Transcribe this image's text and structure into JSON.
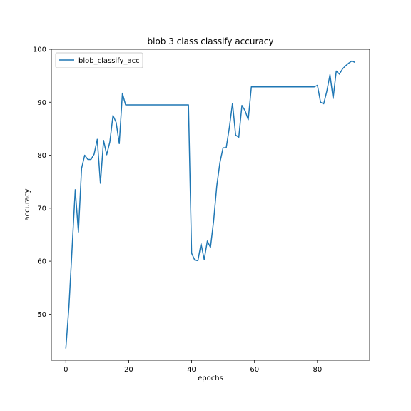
{
  "chart_data": {
    "type": "line",
    "title": "blob 3 class classify accuracy",
    "xlabel": "epochs",
    "ylabel": "accuracy",
    "xlim": [
      -4.6,
      96.6
    ],
    "ylim": [
      41.3,
      100.0
    ],
    "xticks": [
      0,
      20,
      40,
      60,
      80
    ],
    "yticks": [
      50,
      60,
      70,
      80,
      90,
      100
    ],
    "grid": false,
    "legend_position": "top-left",
    "line_color": "#1f77b4",
    "series": [
      {
        "name": "blob_classify_acc",
        "x": [
          0,
          1,
          2,
          3,
          4,
          5,
          6,
          7,
          8,
          9,
          10,
          11,
          12,
          13,
          14,
          15,
          16,
          17,
          18,
          19,
          20,
          21,
          22,
          23,
          24,
          25,
          26,
          27,
          28,
          29,
          30,
          31,
          32,
          33,
          34,
          35,
          36,
          37,
          38,
          39,
          40,
          41,
          42,
          43,
          44,
          45,
          46,
          47,
          48,
          49,
          50,
          51,
          52,
          53,
          54,
          55,
          56,
          57,
          58,
          59,
          60,
          61,
          62,
          63,
          64,
          65,
          66,
          67,
          68,
          69,
          70,
          71,
          72,
          73,
          74,
          75,
          76,
          77,
          78,
          79,
          80,
          81,
          82,
          83,
          84,
          85,
          86,
          87,
          88,
          89,
          90,
          91,
          92
        ],
        "values": [
          43.5,
          51.5,
          62.5,
          73.5,
          65.5,
          77.5,
          80.0,
          79.2,
          79.2,
          80.2,
          83.0,
          74.7,
          82.8,
          80.1,
          82.5,
          87.5,
          86.2,
          82.2,
          91.7,
          89.5,
          89.5,
          89.5,
          89.5,
          89.5,
          89.5,
          89.5,
          89.5,
          89.5,
          89.5,
          89.5,
          89.5,
          89.5,
          89.5,
          89.5,
          89.5,
          89.5,
          89.5,
          89.5,
          89.5,
          89.5,
          61.5,
          60.2,
          60.1,
          63.3,
          60.3,
          63.8,
          62.6,
          67.6,
          74.2,
          78.6,
          81.4,
          81.4,
          85.2,
          89.8,
          83.8,
          83.4,
          89.4,
          88.4,
          86.7,
          92.9,
          92.9,
          92.9,
          92.9,
          92.9,
          92.9,
          92.9,
          92.9,
          92.9,
          92.9,
          92.9,
          92.9,
          92.9,
          92.9,
          92.9,
          92.9,
          92.9,
          92.9,
          92.9,
          92.9,
          92.9,
          93.2,
          90.0,
          89.7,
          92.1,
          95.2,
          90.7,
          95.9,
          95.3,
          96.3,
          96.9,
          97.4,
          97.8,
          97.5
        ]
      }
    ]
  }
}
